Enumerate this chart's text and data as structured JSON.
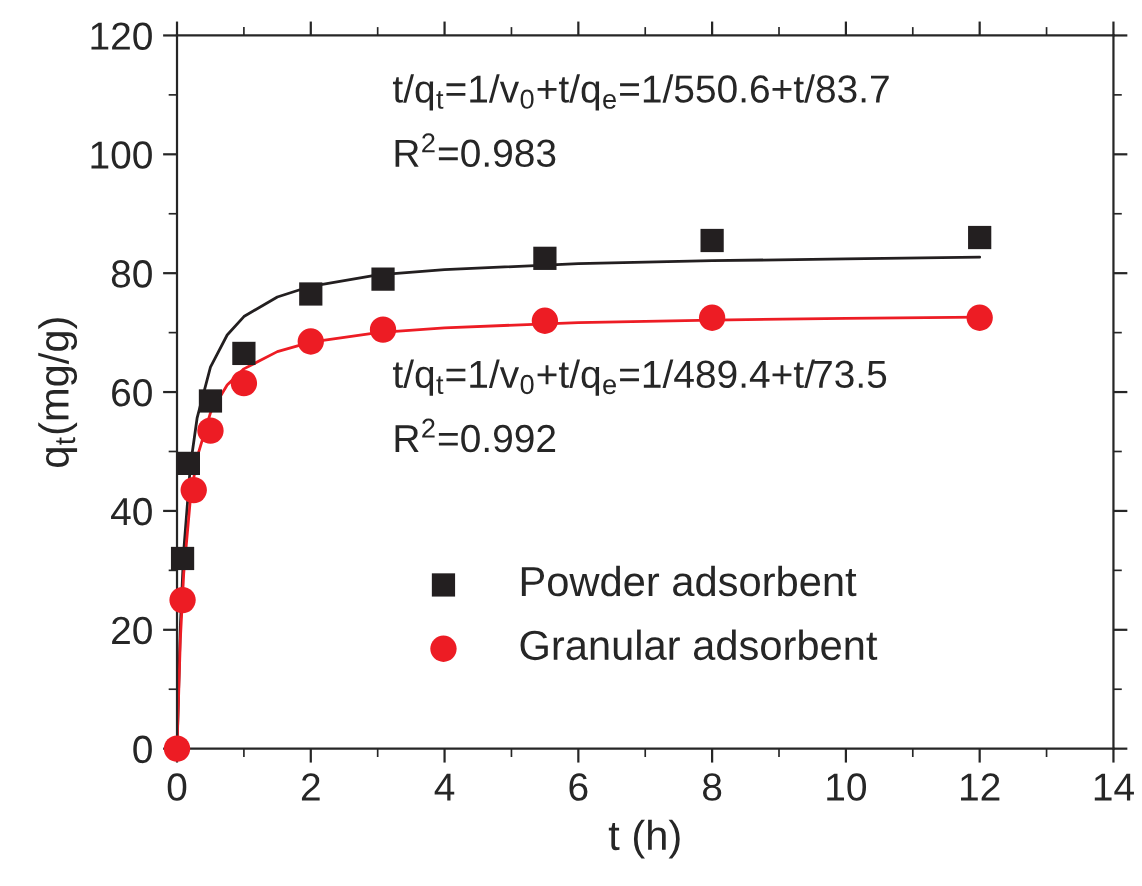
{
  "chart_data": {
    "type": "scatter",
    "xlabel": "t (h)",
    "ylabel": "q$_{t}$(mg/g)",
    "xlim": [
      0,
      14
    ],
    "xticks": [
      0,
      2,
      4,
      6,
      8,
      10,
      12,
      14
    ],
    "ylim": [
      0,
      120
    ],
    "yticks": [
      0,
      20,
      40,
      60,
      80,
      100,
      120
    ],
    "grid": false,
    "legend": "bottom",
    "annotations": [
      "t/q$_{t}$=1/v$_{0}$+t/q$_{e}$=1/550.6+t/83.7",
      "R$^{2}$=0.983",
      "t/q$_{t}$=1/v$_{0}$+t/q$_{e}$=1/489.4+t/73.5",
      "R$^{2}$=0.992"
    ],
    "series": [
      {
        "name": "Powder adsorbent",
        "marker": "square",
        "color": "#231f20",
        "x": [
          0.083,
          0.17,
          0.5,
          1,
          2,
          3.08,
          5.5,
          8,
          12
        ],
        "values": [
          32,
          48,
          58.5,
          66.5,
          76.5,
          79,
          82.5,
          85.5,
          86
        ]
      },
      {
        "name": "Granular adsorbent",
        "marker": "circle",
        "color": "#ed1c24",
        "x": [
          0,
          0.083,
          0.25,
          0.5,
          1,
          2,
          3.08,
          5.5,
          8,
          12
        ],
        "values": [
          0,
          25,
          43.5,
          53.5,
          61.5,
          68.5,
          70.5,
          72,
          72.5,
          72.5
        ]
      },
      {
        "type": "line",
        "marker": "none",
        "line_style": "solid",
        "color": "#231f20",
        "x": [
          0,
          0.05,
          0.1,
          0.2,
          0.3,
          0.5,
          0.75,
          1,
          1.5,
          2,
          3,
          4,
          6,
          8,
          10,
          12
        ],
        "values": [
          0,
          20.7,
          33.2,
          47.6,
          55.6,
          64.2,
          69.6,
          72.7,
          76.0,
          77.8,
          79.7,
          80.6,
          81.6,
          82.1,
          82.4,
          82.7
        ]
      },
      {
        "type": "line",
        "marker": "none",
        "line_style": "solid",
        "color": "#ed1c24",
        "x": [
          0,
          0.05,
          0.1,
          0.2,
          0.3,
          0.5,
          0.75,
          1,
          1.5,
          2,
          3,
          4,
          6,
          8,
          10,
          12
        ],
        "values": [
          0,
          18.4,
          29.4,
          42.0,
          49.0,
          56.5,
          61.2,
          63.9,
          66.8,
          68.4,
          70.0,
          70.8,
          71.7,
          72.1,
          72.4,
          72.6
        ]
      }
    ]
  }
}
